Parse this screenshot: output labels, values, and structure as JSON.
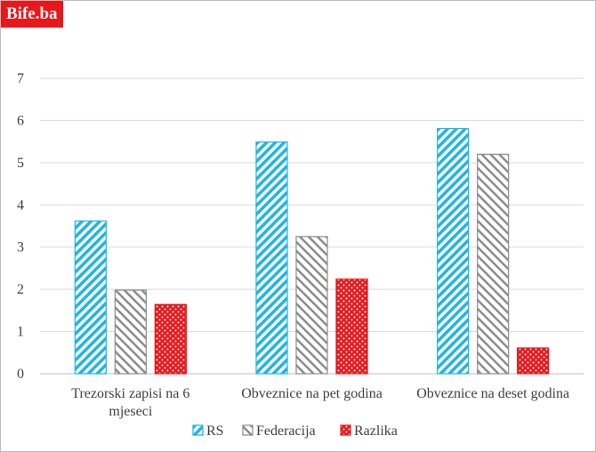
{
  "brand": {
    "logo_text": "Bife.ba",
    "color": "#e8171b"
  },
  "chart_data": {
    "type": "bar",
    "categories": [
      [
        "Trezorski zapisi na 6",
        "mjeseci"
      ],
      [
        "Obveznice na pet godina"
      ],
      [
        "Obveznice na deset godina"
      ]
    ],
    "series": [
      {
        "name": "RS",
        "values": [
          3.62,
          5.49,
          5.81
        ],
        "color": "#1fb5e6",
        "pattern": "hatch-blue"
      },
      {
        "name": "Federacija",
        "values": [
          1.98,
          3.25,
          5.2
        ],
        "color": "#8c8c8c",
        "pattern": "hatch-gray"
      },
      {
        "name": "Razlika",
        "values": [
          1.64,
          2.24,
          0.61
        ],
        "color": "#e8171b",
        "pattern": "dots-red"
      }
    ],
    "ylim": [
      0,
      7
    ],
    "yticks": [
      0,
      1,
      2,
      3,
      4,
      5,
      6,
      7
    ],
    "grid": true,
    "legend_position": "bottom"
  }
}
